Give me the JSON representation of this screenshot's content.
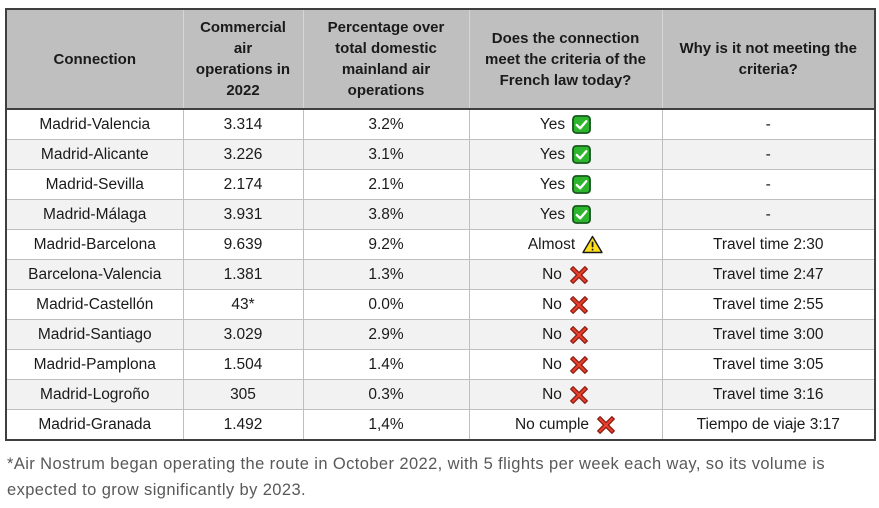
{
  "table": {
    "headers": [
      "Connection",
      "Commercial air operations in 2022",
      "Percentage over total domestic mainland air operations",
      "Does the connection meet the criteria of the French law today?",
      "Why is it not meeting the criteria?"
    ],
    "rows": [
      {
        "connection": "Madrid-Valencia",
        "operations": "3.314",
        "percentage": "3.2%",
        "verdict": "Yes",
        "verdict_icon": "check",
        "reason": "-"
      },
      {
        "connection": "Madrid-Alicante",
        "operations": "3.226",
        "percentage": "3.1%",
        "verdict": "Yes",
        "verdict_icon": "check",
        "reason": "-"
      },
      {
        "connection": "Madrid-Sevilla",
        "operations": "2.174",
        "percentage": "2.1%",
        "verdict": "Yes",
        "verdict_icon": "check",
        "reason": "-"
      },
      {
        "connection": "Madrid-Málaga",
        "operations": "3.931",
        "percentage": "3.8%",
        "verdict": "Yes",
        "verdict_icon": "check",
        "reason": "-"
      },
      {
        "connection": "Madrid-Barcelona",
        "operations": "9.639",
        "percentage": "9.2%",
        "verdict": "Almost",
        "verdict_icon": "warning",
        "reason": "Travel time 2:30"
      },
      {
        "connection": "Barcelona-Valencia",
        "operations": "1.381",
        "percentage": "1.3%",
        "verdict": "No",
        "verdict_icon": "cross",
        "reason": "Travel time 2:47"
      },
      {
        "connection": "Madrid-Castellón",
        "operations": "43*",
        "percentage": "0.0%",
        "verdict": "No",
        "verdict_icon": "cross",
        "reason": "Travel time 2:55"
      },
      {
        "connection": "Madrid-Santiago",
        "operations": "3.029",
        "percentage": "2.9%",
        "verdict": "No",
        "verdict_icon": "cross",
        "reason": "Travel time 3:00"
      },
      {
        "connection": "Madrid-Pamplona",
        "operations": "1.504",
        "percentage": "1.4%",
        "verdict": "No",
        "verdict_icon": "cross",
        "reason": "Travel time 3:05"
      },
      {
        "connection": "Madrid-Logroño",
        "operations": "305",
        "percentage": "0.3%",
        "verdict": "No",
        "verdict_icon": "cross",
        "reason": "Travel time 3:16"
      },
      {
        "connection": "Madrid-Granada",
        "operations": "1.492",
        "percentage": "1,4%",
        "verdict": "No cumple",
        "verdict_icon": "cross",
        "reason": "Tiempo de viaje 3:17"
      }
    ]
  },
  "footnote": "*Air Nostrum began operating the route in October 2022, with 5 flights per week each way, so its volume is expected to grow significantly by 2023.",
  "colors": {
    "header_bg": "#bfbfbf",
    "row_alt_bg": "#f2f2f2",
    "border_dark": "#3f3f3f",
    "border_light": "#bfbfbf",
    "text": "#1a1a1a",
    "footnote_text": "#595959",
    "check_green": "#2db52d",
    "check_border": "#14521c",
    "warning_yellow": "#ffdf1b",
    "warning_border": "#1a1a1a",
    "cross_red": "#e8402f",
    "cross_border": "#8c1d10"
  },
  "chart_data": {
    "type": "table",
    "columns": [
      "Connection",
      "Commercial air operations in 2022",
      "Percentage over total domestic mainland air operations",
      "Does the connection meet the criteria of the French law today?",
      "Why is it not meeting the criteria?"
    ],
    "rows": [
      [
        "Madrid-Valencia",
        "3.314",
        "3.2%",
        "Yes",
        "-"
      ],
      [
        "Madrid-Alicante",
        "3.226",
        "3.1%",
        "Yes",
        "-"
      ],
      [
        "Madrid-Sevilla",
        "2.174",
        "2.1%",
        "Yes",
        "-"
      ],
      [
        "Madrid-Málaga",
        "3.931",
        "3.8%",
        "Yes",
        "-"
      ],
      [
        "Madrid-Barcelona",
        "9.639",
        "9.2%",
        "Almost",
        "Travel time 2:30"
      ],
      [
        "Barcelona-Valencia",
        "1.381",
        "1.3%",
        "No",
        "Travel time 2:47"
      ],
      [
        "Madrid-Castellón",
        "43*",
        "0.0%",
        "No",
        "Travel time 2:55"
      ],
      [
        "Madrid-Santiago",
        "3.029",
        "2.9%",
        "No",
        "Travel time 3:00"
      ],
      [
        "Madrid-Pamplona",
        "1.504",
        "1.4%",
        "No",
        "Travel time 3:05"
      ],
      [
        "Madrid-Logroño",
        "305",
        "0.3%",
        "No",
        "Travel time 3:16"
      ],
      [
        "Madrid-Granada",
        "1.492",
        "1,4%",
        "No cumple",
        "Tiempo de viaje 3:17"
      ]
    ]
  }
}
